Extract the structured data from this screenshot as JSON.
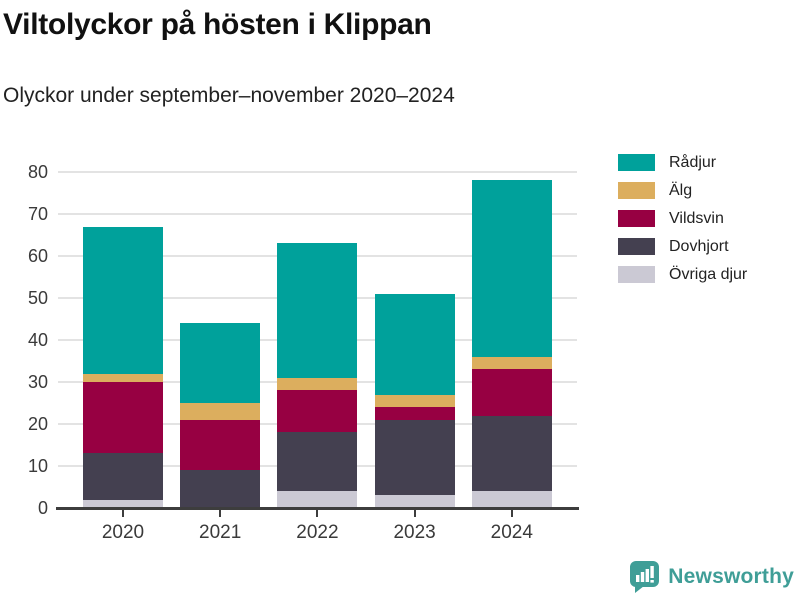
{
  "header": {
    "title": "Viltolyckor på hösten i Klippan",
    "subtitle": "Olyckor under september–november 2020–2024"
  },
  "chart_data": {
    "type": "bar",
    "stacked": true,
    "title": "Viltolyckor på hösten i Klippan",
    "subtitle": "Olyckor under september–november 2020–2024",
    "categories": [
      "2020",
      "2021",
      "2022",
      "2023",
      "2024"
    ],
    "series": [
      {
        "name": "Övriga djur",
        "color": "#cbc9d4",
        "values": [
          2,
          0,
          4,
          3,
          4
        ]
      },
      {
        "name": "Dovhjort",
        "color": "#444050",
        "values": [
          11,
          9,
          14,
          18,
          18
        ]
      },
      {
        "name": "Vildsvin",
        "color": "#970042",
        "values": [
          17,
          12,
          10,
          3,
          11
        ]
      },
      {
        "name": "Älg",
        "color": "#dcae5e",
        "values": [
          2,
          4,
          3,
          3,
          3
        ]
      },
      {
        "name": "Rådjur",
        "color": "#00a19b",
        "values": [
          35,
          19,
          32,
          24,
          42
        ]
      }
    ],
    "totals": [
      67,
      44,
      63,
      51,
      78
    ],
    "xlabel": "",
    "ylabel": "",
    "ylim": [
      0,
      80
    ],
    "yticks": [
      0,
      10,
      20,
      30,
      40,
      50,
      60,
      70,
      80
    ],
    "grid": true,
    "legend_position": "right",
    "legend_order": [
      "Rådjur",
      "Älg",
      "Vildsvin",
      "Dovhjort",
      "Övriga djur"
    ]
  },
  "colors": {
    "axis_line": "#3d3d3d",
    "gridline": "#e3e3e3",
    "tick_label": "#3a3a3a",
    "title": "#111111",
    "subtitle": "#222222"
  },
  "branding": {
    "logo_text": "Newsworthy",
    "logo_color": "#3f9e97",
    "logo_icon": "bar-chart-speech-bubble-icon"
  }
}
